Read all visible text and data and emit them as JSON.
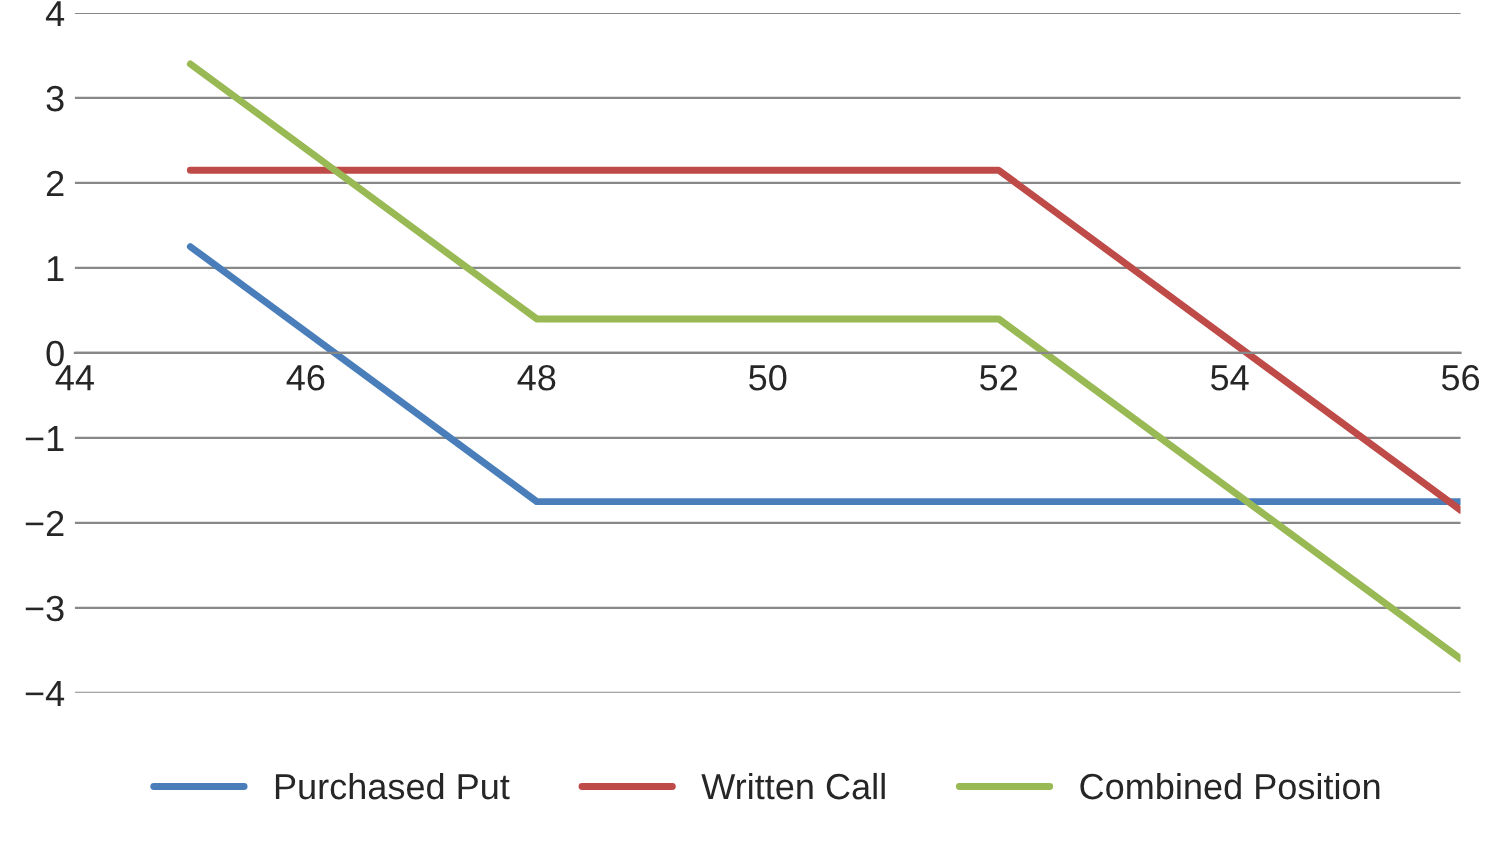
{
  "chart_data": {
    "type": "line",
    "series": [
      {
        "name": "Purchased Put",
        "color": "#4a7ebb",
        "x": [
          45,
          48,
          56
        ],
        "values": [
          1.25,
          -1.75,
          -1.75
        ]
      },
      {
        "name": "Written Call",
        "color": "#be4b48",
        "x": [
          45,
          52,
          56
        ],
        "values": [
          2.15,
          2.15,
          -1.85
        ]
      },
      {
        "name": "Combined Position",
        "color": "#98b954",
        "x": [
          45,
          48,
          52,
          56
        ],
        "values": [
          3.4,
          0.4,
          0.4,
          -3.6
        ]
      }
    ],
    "xlim": [
      44,
      56
    ],
    "xticks": [
      44,
      46,
      48,
      50,
      52,
      54,
      56
    ],
    "ylim": [
      -4,
      4
    ],
    "yticks": [
      {
        "value": -4,
        "label": "−4"
      },
      {
        "value": -3,
        "label": "−3"
      },
      {
        "value": -2,
        "label": "−2"
      },
      {
        "value": -1,
        "label": "−1"
      },
      0,
      1,
      2,
      3,
      4
    ],
    "grid": "y",
    "legend": "bottom",
    "marker": "none",
    "line_style": "solid"
  }
}
